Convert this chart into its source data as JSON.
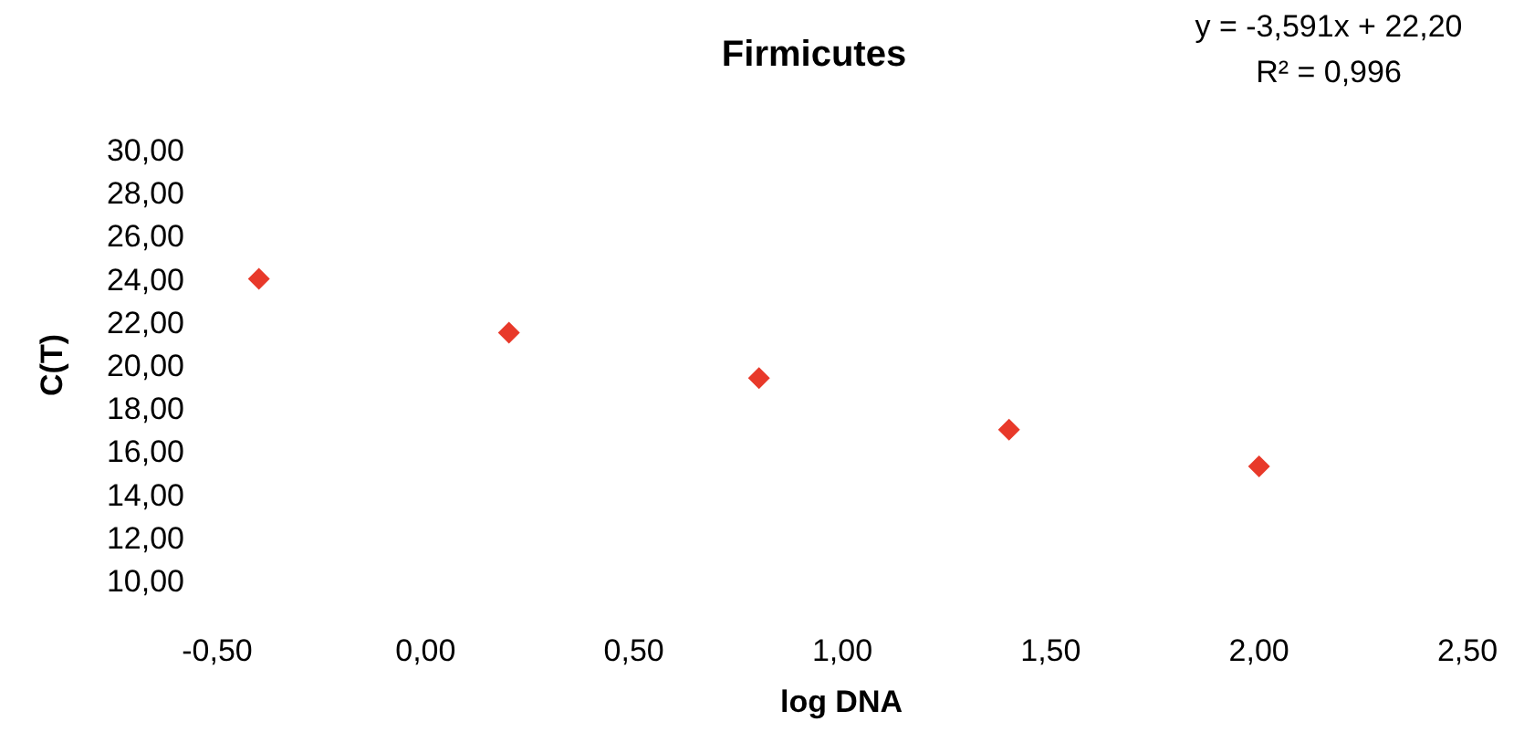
{
  "chart_data": {
    "type": "scatter",
    "title": "Firmicutes",
    "xlabel": "log DNA",
    "ylabel": "C(T)",
    "annotations": [
      "y = -3,591x + 22,20",
      "R² = 0,996"
    ],
    "x": [
      -0.4,
      0.2,
      0.8,
      1.4,
      2.0
    ],
    "series": [
      {
        "color": "#e8392a",
        "values": [
          24.0,
          21.5,
          19.4,
          17.0,
          15.3
        ]
      }
    ],
    "marker": "diamond",
    "grid": false,
    "xlim": [
      -0.5,
      2.5
    ],
    "xticks": [
      {
        "value": -0.5,
        "label": "-0,50"
      },
      {
        "value": 0,
        "label": "0,00"
      },
      {
        "value": 0.5,
        "label": "0,50"
      },
      {
        "value": 1,
        "label": "1,00"
      },
      {
        "value": 1.5,
        "label": "1,50"
      },
      {
        "value": 2,
        "label": "2,00"
      },
      {
        "value": 2.5,
        "label": "2,50"
      }
    ],
    "ylim": [
      10,
      30
    ],
    "yticks": [
      {
        "value": 10,
        "label": "10,00"
      },
      {
        "value": 12,
        "label": "12,00"
      },
      {
        "value": 14,
        "label": "14,00"
      },
      {
        "value": 16,
        "label": "16,00"
      },
      {
        "value": 18,
        "label": "18,00"
      },
      {
        "value": 20,
        "label": "20,00"
      },
      {
        "value": 22,
        "label": "22,00"
      },
      {
        "value": 24,
        "label": "24,00"
      },
      {
        "value": 26,
        "label": "26,00"
      },
      {
        "value": 28,
        "label": "28,00"
      },
      {
        "value": 30,
        "label": "30,00"
      }
    ]
  }
}
